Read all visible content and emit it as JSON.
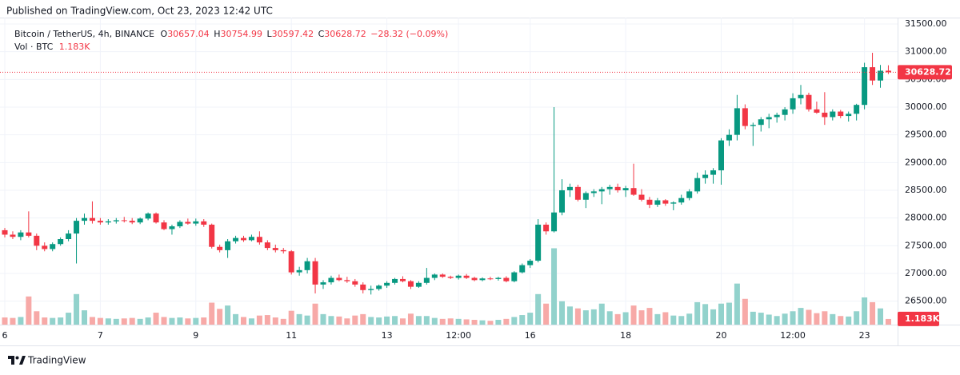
{
  "header": {
    "published": "Published on TradingView.com, Oct 23, 2023 12:42 UTC"
  },
  "footer": {
    "brand": "TradingView"
  },
  "chart_data": {
    "type": "candlestick",
    "title": "Bitcoin / TetherUS, 4h, BINANCE",
    "ohlc_labels": [
      "O",
      "H",
      "L",
      "C"
    ],
    "change_label": "−28.32 (−0.09%)",
    "up_color": "#089981",
    "down_color": "#f23645",
    "volume_up_color": "#92d2cc",
    "volume_down_color": "#f7a9a7",
    "grid": true,
    "categories": [
      "6",
      null,
      null,
      null,
      null,
      null,
      null,
      null,
      null,
      null,
      null,
      null,
      "7",
      null,
      null,
      null,
      null,
      null,
      null,
      null,
      null,
      null,
      null,
      null,
      "9",
      null,
      null,
      null,
      null,
      null,
      null,
      null,
      null,
      null,
      null,
      null,
      "11",
      null,
      null,
      null,
      null,
      null,
      null,
      null,
      null,
      null,
      null,
      null,
      "13",
      null,
      null,
      null,
      null,
      null,
      null,
      null,
      null,
      "12:00",
      null,
      null,
      null,
      null,
      null,
      null,
      null,
      null,
      "16",
      null,
      null,
      null,
      null,
      null,
      null,
      null,
      null,
      null,
      null,
      null,
      "18",
      null,
      null,
      null,
      null,
      null,
      null,
      null,
      null,
      null,
      null,
      null,
      "20",
      null,
      null,
      null,
      null,
      null,
      null,
      null,
      null,
      "12:00",
      null,
      null,
      null,
      null,
      null,
      null,
      null,
      null,
      "23",
      null,
      null,
      null
    ],
    "open": [
      27780,
      27700,
      27660,
      27740,
      27680,
      27500,
      27440,
      27530,
      27620,
      27720,
      27950,
      28000,
      27950,
      27920,
      27940,
      27960,
      27950,
      27920,
      27990,
      28080,
      27920,
      27800,
      27850,
      27930,
      27900,
      27940,
      27880,
      27480,
      27420,
      27580,
      27640,
      27600,
      27660,
      27560,
      27460,
      27420,
      27400,
      27020,
      27060,
      27220,
      26800,
      26840,
      26920,
      26880,
      26860,
      26800,
      26700,
      26720,
      26780,
      26830,
      26900,
      26860,
      26760,
      26830,
      26920,
      26980,
      26940,
      26920,
      26960,
      26920,
      26880,
      26910,
      26900,
      26920,
      26860,
      27020,
      27150,
      27230,
      27880,
      27760,
      28100,
      28500,
      28560,
      28330,
      28450,
      28480,
      28520,
      28560,
      28500,
      28540,
      28420,
      28330,
      28240,
      28320,
      28260,
      28280,
      28360,
      28480,
      28720,
      28780,
      28860,
      29400,
      29500,
      29980,
      29660,
      29680,
      29780,
      29820,
      29860,
      29960,
      30160,
      30220,
      29960,
      29900,
      29820,
      29920,
      29840,
      29880,
      30040,
      30720,
      30480,
      30657.04
    ],
    "high": [
      27820,
      27760,
      27780,
      28120,
      27720,
      27560,
      27560,
      27650,
      27780,
      28000,
      28080,
      28300,
      28000,
      27980,
      28000,
      28020,
      28000,
      28010,
      28100,
      28100,
      27960,
      27880,
      27960,
      27990,
      27990,
      27980,
      27900,
      27520,
      27620,
      27680,
      27680,
      27700,
      27760,
      27600,
      27520,
      27460,
      27420,
      27120,
      27280,
      27280,
      26880,
      26960,
      26980,
      26940,
      26900,
      26840,
      26780,
      26800,
      26860,
      26920,
      26950,
      26880,
      26860,
      27100,
      27000,
      27000,
      26960,
      26980,
      26990,
      26940,
      26930,
      26940,
      26940,
      26950,
      27040,
      27180,
      27260,
      27980,
      27920,
      30000,
      28700,
      28620,
      28600,
      28480,
      28520,
      28560,
      28600,
      28620,
      28580,
      28980,
      28520,
      28380,
      28360,
      28340,
      28300,
      28420,
      28520,
      28820,
      28860,
      28900,
      29440,
      29600,
      30220,
      30050,
      29720,
      29820,
      29880,
      29900,
      30000,
      30250,
      30400,
      30260,
      30100,
      30270,
      29960,
      29950,
      29920,
      30060,
      30800,
      30980,
      30760,
      30754.99
    ],
    "low": [
      27650,
      27620,
      27600,
      27650,
      27420,
      27400,
      27400,
      27500,
      27580,
      27180,
      27880,
      27900,
      27880,
      27880,
      27900,
      27920,
      27890,
      27890,
      27960,
      27900,
      27780,
      27700,
      27820,
      27880,
      27860,
      27840,
      27450,
      27380,
      27280,
      27540,
      27570,
      27580,
      27520,
      27420,
      27380,
      27360,
      26980,
      26960,
      27000,
      26640,
      26720,
      26800,
      26860,
      26830,
      26760,
      26640,
      26620,
      26690,
      26740,
      26800,
      26840,
      26720,
      26740,
      26800,
      26880,
      26920,
      26900,
      26890,
      26900,
      26860,
      26860,
      26880,
      26870,
      26840,
      26840,
      27000,
      27100,
      27200,
      27700,
      27740,
      28050,
      28380,
      28300,
      28180,
      28380,
      28250,
      28420,
      28460,
      28380,
      28400,
      28300,
      28180,
      28200,
      28220,
      28140,
      28240,
      28320,
      28440,
      28620,
      28620,
      28600,
      29300,
      29400,
      29600,
      29300,
      29560,
      29620,
      29720,
      29760,
      29880,
      30050,
      29920,
      29880,
      29680,
      29760,
      29800,
      29740,
      29760,
      29960,
      30400,
      30350,
      30597.42
    ],
    "close": [
      27700,
      27660,
      27740,
      27680,
      27500,
      27440,
      27530,
      27620,
      27720,
      27950,
      28000,
      27950,
      27920,
      27940,
      27960,
      27950,
      27920,
      27990,
      28080,
      27920,
      27800,
      27850,
      27930,
      27900,
      27940,
      27880,
      27480,
      27420,
      27580,
      27640,
      27600,
      27660,
      27560,
      27460,
      27420,
      27400,
      27020,
      27060,
      27220,
      26800,
      26840,
      26920,
      26880,
      26860,
      26800,
      26700,
      26720,
      26780,
      26830,
      26900,
      26860,
      26760,
      26830,
      26920,
      26980,
      26940,
      26920,
      26960,
      26920,
      26880,
      26910,
      26900,
      26920,
      26860,
      27020,
      27150,
      27230,
      27880,
      27760,
      28100,
      28500,
      28560,
      28330,
      28450,
      28480,
      28520,
      28560,
      28500,
      28540,
      28420,
      28330,
      28240,
      28320,
      28260,
      28280,
      28360,
      28480,
      28720,
      28780,
      28860,
      29400,
      29500,
      29980,
      29660,
      29680,
      29780,
      29820,
      29860,
      29960,
      30160,
      30220,
      29960,
      29900,
      29820,
      29920,
      29840,
      29880,
      30040,
      30720,
      30480,
      30657.04,
      30628.72
    ],
    "volume": {
      "name": "Vol · BTC",
      "last_label": "1.183K",
      "values": [
        1500,
        1400,
        1600,
        5900,
        2800,
        1500,
        1400,
        1500,
        2500,
        6400,
        3000,
        1600,
        1400,
        1300,
        1200,
        1300,
        1400,
        1200,
        1500,
        2500,
        1600,
        1400,
        1500,
        1300,
        1400,
        1500,
        4600,
        3300,
        4000,
        2200,
        1600,
        1300,
        1900,
        2000,
        1500,
        1200,
        2900,
        2200,
        1900,
        4400,
        2200,
        1800,
        1700,
        1300,
        1900,
        2200,
        1600,
        1500,
        1700,
        1800,
        1300,
        2300,
        1800,
        1800,
        1400,
        1200,
        1300,
        1200,
        1100,
        1000,
        900,
        800,
        1000,
        1200,
        1600,
        2000,
        2500,
        6400,
        4400,
        16000,
        4900,
        3800,
        3400,
        3000,
        3200,
        4400,
        2800,
        2200,
        2600,
        4000,
        3000,
        3500,
        2200,
        2600,
        1900,
        1800,
        2300,
        4700,
        4300,
        3200,
        4400,
        4600,
        8600,
        5400,
        2700,
        2500,
        2100,
        1800,
        2300,
        2800,
        3500,
        3100,
        2400,
        2800,
        2200,
        1800,
        1700,
        2800,
        5700,
        4700,
        3400,
        1183
      ]
    },
    "vlim": [
      0,
      68000
    ],
    "ylim": [
      26077,
      31615
    ],
    "yticks": [
      {
        "value": 26500,
        "label": "26500.00"
      },
      {
        "value": 27000,
        "label": "27000.00"
      },
      {
        "value": 27500,
        "label": "27500.00"
      },
      {
        "value": 28000,
        "label": "28000.00"
      },
      {
        "value": 28500,
        "label": "28500.00"
      },
      {
        "value": 29000,
        "label": "29000.00"
      },
      {
        "value": 29500,
        "label": "29500.00"
      },
      {
        "value": 30000,
        "label": "30000.00"
      },
      {
        "value": 30500,
        "label": "30500.00"
      },
      {
        "value": 31000,
        "label": "31000.00"
      },
      {
        "value": 31500,
        "label": "31500.00"
      }
    ]
  }
}
